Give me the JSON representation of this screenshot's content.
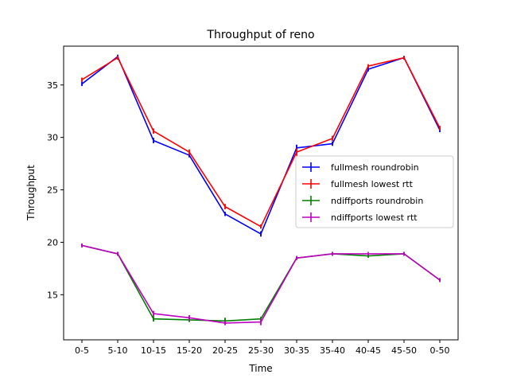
{
  "chart_data": {
    "type": "line",
    "title": "Throughput of reno",
    "xlabel": "Time",
    "ylabel": "Throughput",
    "categories": [
      "0-5",
      "5-10",
      "10-15",
      "15-20",
      "20-25",
      "25-30",
      "30-35",
      "35-40",
      "40-45",
      "45-50",
      "0-50"
    ],
    "yticks": [
      15,
      20,
      25,
      30,
      35
    ],
    "ylim": [
      10.7,
      38.7
    ],
    "grid": false,
    "legend_position": "right",
    "error_bars": true,
    "series": [
      {
        "name": "fullmesh roundrobin",
        "color": "#0000ff",
        "values": [
          35.1,
          37.7,
          29.7,
          28.3,
          22.7,
          20.8,
          29.0,
          29.4,
          36.5,
          37.6,
          30.7
        ],
        "errors": [
          0.2,
          0.15,
          0.25,
          0.2,
          0.2,
          0.25,
          0.3,
          0.2,
          0.2,
          0.1,
          0.2
        ]
      },
      {
        "name": "fullmesh lowest rtt",
        "color": "#ff0000",
        "values": [
          35.5,
          37.6,
          30.6,
          28.6,
          23.4,
          21.5,
          28.6,
          29.9,
          36.8,
          37.6,
          30.9
        ],
        "errors": [
          0.2,
          0.15,
          0.25,
          0.25,
          0.25,
          0.2,
          0.35,
          0.25,
          0.15,
          0.1,
          0.2
        ]
      },
      {
        "name": "ndiffports roundrobin",
        "color": "#008000",
        "values": [
          19.7,
          18.9,
          12.7,
          12.6,
          12.5,
          12.7,
          18.5,
          18.9,
          18.7,
          18.9,
          16.4
        ],
        "errors": [
          0.1,
          0.1,
          0.25,
          0.2,
          0.3,
          0.2,
          0.1,
          0.1,
          0.1,
          0.1,
          0.1
        ]
      },
      {
        "name": "ndiffports lowest rtt",
        "color": "#bf00bf",
        "values": [
          19.7,
          18.9,
          13.2,
          12.8,
          12.3,
          12.4,
          18.5,
          18.9,
          18.9,
          18.9,
          16.4
        ],
        "errors": [
          0.1,
          0.1,
          0.25,
          0.25,
          0.2,
          0.3,
          0.1,
          0.1,
          0.1,
          0.1,
          0.1
        ]
      }
    ]
  }
}
